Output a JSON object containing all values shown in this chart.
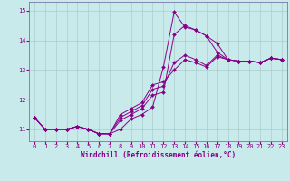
{
  "xlabel": "Windchill (Refroidissement éolien,°C)",
  "background_color": "#c8eaea",
  "grid_color": "#aacccc",
  "line_color": "#880088",
  "spine_color": "#7777aa",
  "xlim": [
    -0.5,
    23.5
  ],
  "ylim": [
    10.6,
    15.3
  ],
  "xticks": [
    0,
    1,
    2,
    3,
    4,
    5,
    6,
    7,
    8,
    9,
    10,
    11,
    12,
    13,
    14,
    15,
    16,
    17,
    18,
    19,
    20,
    21,
    22,
    23
  ],
  "yticks": [
    11,
    12,
    13,
    14,
    15
  ],
  "hours": [
    0,
    1,
    2,
    3,
    4,
    5,
    6,
    7,
    8,
    9,
    10,
    11,
    12,
    13,
    14,
    15,
    16,
    17,
    18,
    19,
    20,
    21,
    22,
    23
  ],
  "series": [
    [
      11.4,
      11.0,
      11.0,
      11.0,
      11.1,
      11.0,
      10.85,
      10.85,
      11.0,
      11.35,
      11.5,
      11.75,
      13.1,
      14.95,
      14.45,
      14.35,
      14.15,
      13.9,
      13.35,
      13.3,
      13.3,
      13.25,
      13.4,
      13.35
    ],
    [
      11.4,
      11.0,
      11.0,
      11.0,
      11.1,
      11.0,
      10.85,
      10.85,
      11.3,
      11.5,
      11.7,
      12.15,
      12.25,
      14.2,
      14.5,
      14.35,
      14.15,
      13.6,
      13.35,
      13.3,
      13.3,
      13.25,
      13.4,
      13.35
    ],
    [
      11.4,
      11.0,
      11.0,
      11.0,
      11.1,
      11.0,
      10.85,
      10.85,
      11.4,
      11.6,
      11.8,
      12.35,
      12.45,
      13.25,
      13.5,
      13.35,
      13.15,
      13.5,
      13.35,
      13.3,
      13.3,
      13.25,
      13.4,
      13.35
    ],
    [
      11.4,
      11.0,
      11.0,
      11.0,
      11.1,
      11.0,
      10.85,
      10.85,
      11.5,
      11.7,
      11.9,
      12.5,
      12.6,
      13.0,
      13.35,
      13.25,
      13.1,
      13.45,
      13.35,
      13.3,
      13.3,
      13.25,
      13.4,
      13.35
    ]
  ],
  "tick_fontsize": 5.0,
  "xlabel_fontsize": 5.5,
  "marker_size": 2.0,
  "linewidth": 0.7
}
